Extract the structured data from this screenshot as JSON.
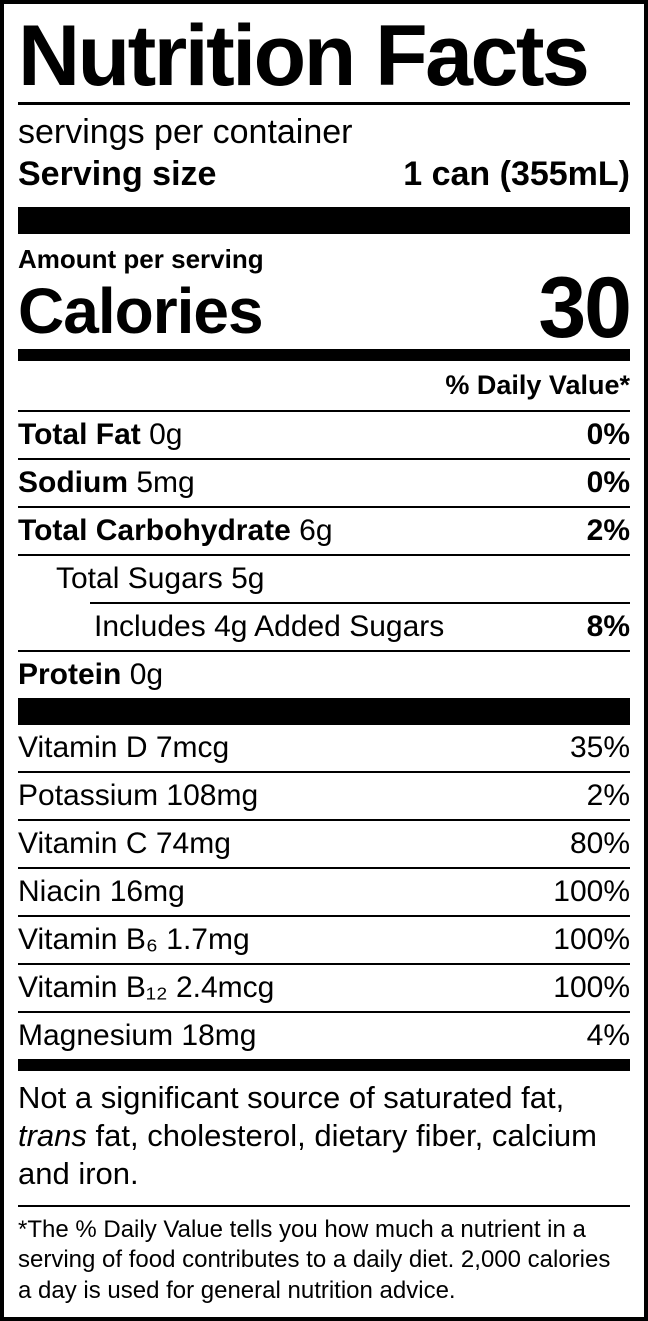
{
  "colors": {
    "text": "#000000",
    "background": "#ffffff"
  },
  "header": {
    "title": "Nutrition Facts",
    "servings_per_container": "servings per container",
    "serving_size_label": "Serving size",
    "serving_size_value": "1 can (355mL)"
  },
  "calories": {
    "amount_per_serving_label": "Amount per serving",
    "label": "Calories",
    "value": "30"
  },
  "daily_value_header": "% Daily Value*",
  "nutrients": [
    {
      "name": "Total Fat",
      "amount": "0g",
      "dv": "0%",
      "name_bold": true,
      "dv_bold": true,
      "indent": 0,
      "divider_indent": false
    },
    {
      "name": "Sodium",
      "amount": "5mg",
      "dv": "0%",
      "name_bold": true,
      "dv_bold": true,
      "indent": 0,
      "divider_indent": false
    },
    {
      "name": "Total Carbohydrate",
      "amount": "6g",
      "dv": "2%",
      "name_bold": true,
      "dv_bold": true,
      "indent": 0,
      "divider_indent": false
    },
    {
      "name": "Total Sugars",
      "amount": "5g",
      "dv": "",
      "name_bold": false,
      "dv_bold": false,
      "indent": 1,
      "divider_indent": false
    },
    {
      "name": "Includes 4g Added Sugars",
      "amount": "",
      "dv": "8%",
      "name_bold": false,
      "dv_bold": true,
      "indent": 2,
      "divider_indent": true
    },
    {
      "name": "Protein",
      "amount": "0g",
      "dv": "",
      "name_bold": true,
      "dv_bold": false,
      "indent": 0,
      "divider_indent": false
    }
  ],
  "vitamins": [
    {
      "name": "Vitamin D",
      "amount": "7mcg",
      "dv": "35%",
      "name_bold": false,
      "dv_bold": false,
      "indent": 0,
      "divider_indent": false
    },
    {
      "name": "Potassium",
      "amount": "108mg",
      "dv": "2%",
      "name_bold": false,
      "dv_bold": false,
      "indent": 0,
      "divider_indent": false
    },
    {
      "name": "Vitamin C",
      "amount": "74mg",
      "dv": "80%",
      "name_bold": false,
      "dv_bold": false,
      "indent": 0,
      "divider_indent": false
    },
    {
      "name": "Niacin",
      "amount": "16mg",
      "dv": "100%",
      "name_bold": false,
      "dv_bold": false,
      "indent": 0,
      "divider_indent": false
    },
    {
      "name": "Vitamin B₆",
      "amount": "1.7mg",
      "dv": "100%",
      "name_bold": false,
      "dv_bold": false,
      "indent": 0,
      "divider_indent": false
    },
    {
      "name": "Vitamin B₁₂",
      "amount": "2.4mcg",
      "dv": "100%",
      "name_bold": false,
      "dv_bold": false,
      "indent": 0,
      "divider_indent": false
    },
    {
      "name": "Magnesium",
      "amount": "18mg",
      "dv": "4%",
      "name_bold": false,
      "dv_bold": false,
      "indent": 0,
      "divider_indent": false
    }
  ],
  "not_significant": {
    "prefix": "Not a significant source of saturated fat, ",
    "italic_word": "trans",
    "suffix": " fat, cholesterol, dietary fiber, calcium and iron."
  },
  "footnote": "*The % Daily Value tells you how much a nutrient in a serving of food contributes to a daily diet. 2,000 calories a day is used for general nutrition advice."
}
